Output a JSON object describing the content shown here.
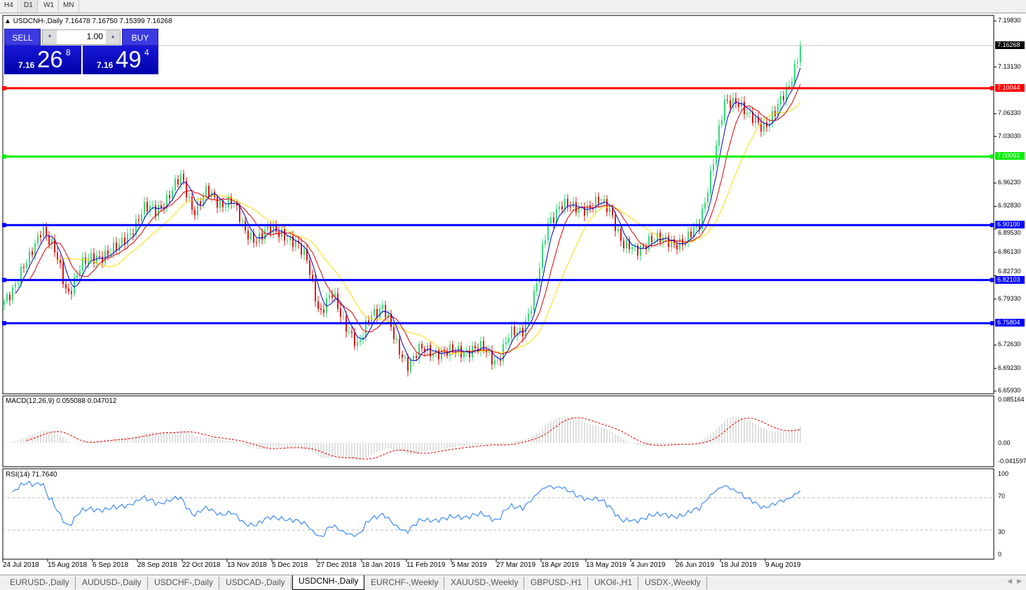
{
  "timeframes": [
    "H4",
    "D1",
    "W1",
    "MN"
  ],
  "active_timeframe": "D1",
  "chart": {
    "header": "USDCNH-,Daily  7.16478 7.16750 7.15399 7.16268",
    "symbol": "USDCNH-,Daily"
  },
  "trade_panel": {
    "sell_label": "SELL",
    "buy_label": "BUY",
    "lot": "1.00",
    "sell_price": {
      "prefix": "7.16",
      "big": "26",
      "sup": "8"
    },
    "buy_price": {
      "prefix": "7.16",
      "big": "49",
      "sup": "4"
    }
  },
  "price_axis": [
    "7.19830",
    "7.13130",
    "7.06330",
    "7.03030",
    "6.96230",
    "6.92830",
    "6.89530",
    "6.86130",
    "6.82730",
    "6.79330",
    "6.72630",
    "6.69230",
    "6.65930"
  ],
  "price_tags": [
    {
      "value": "7.16268",
      "price": 7.16268,
      "color": "#000000"
    },
    {
      "value": "7.10044",
      "price": 7.10044,
      "color": "#ff0000"
    },
    {
      "value": "7.00092",
      "price": 7.00092,
      "color": "#00ee00"
    },
    {
      "value": "6.90100",
      "price": 6.901,
      "color": "#0000ff"
    },
    {
      "value": "6.82103",
      "price": 6.82103,
      "color": "#0000ff"
    },
    {
      "value": "6.75804",
      "price": 6.75804,
      "color": "#0000ff"
    }
  ],
  "date_axis": [
    "24 Jul 2018",
    "15 Aug 2018",
    "6 Sep 2018",
    "28 Sep 2018",
    "22 Oct 2018",
    "13 Nov 2018",
    "5 Dec 2018",
    "27 Dec 2018",
    "18 Jan 2019",
    "11 Feb 2019",
    "5 Mar 2019",
    "27 Mar 2019",
    "18 Apr 2019",
    "13 May 2019",
    "4 Jun 2019",
    "26 Jun 2019",
    "18 Jul 2019",
    "9 Aug 2019"
  ],
  "macd": {
    "label": "MACD(12,26,9) 0.055088 0.047012",
    "axis": [
      "0.085164",
      "0.00",
      "-0.041597"
    ]
  },
  "rsi": {
    "label": "RSI(14) 71.7640",
    "axis": [
      "100",
      "70",
      "30",
      "0"
    ]
  },
  "tabs": [
    "EURUSD-,Daily",
    "AUDUSD-,Daily",
    "USDCHF-,Daily",
    "USDCAD-,Daily",
    "USDCNH-,Daily",
    "EURCHF-,Weekly",
    "XAUUSD-,Weekly",
    "GBPUSD-,H1",
    "UKOil-,H1",
    "USDX-,Weekly"
  ],
  "active_tab": "USDCNH-,Daily",
  "chart_data": {
    "type": "candlestick",
    "symbol": "USDCNH-",
    "timeframe": "Daily",
    "ylim": [
      6.6593,
      7.1983
    ],
    "approx_closes": [
      6.79,
      6.821,
      6.851,
      6.902,
      6.861,
      6.8,
      6.841,
      6.851,
      6.861,
      6.866,
      6.892,
      6.923,
      6.923,
      6.943,
      6.969,
      6.923,
      6.948,
      6.933,
      6.938,
      6.892,
      6.882,
      6.892,
      6.892,
      6.872,
      6.851,
      6.77,
      6.8,
      6.759,
      6.719,
      6.775,
      6.78,
      6.729,
      6.698,
      6.719,
      6.719,
      6.713,
      6.719,
      6.719,
      6.719,
      6.703,
      6.739,
      6.749,
      6.8,
      6.902,
      6.933,
      6.923,
      6.928,
      6.933,
      6.923,
      6.872,
      6.861,
      6.882,
      6.877,
      6.877,
      6.877,
      6.902,
      6.984,
      7.076,
      7.086,
      7.055,
      7.045,
      7.066,
      7.096,
      7.162
    ],
    "last": {
      "open": 7.16478,
      "high": 7.1675,
      "low": 7.15399,
      "close": 7.16268
    },
    "colors": {
      "bull": "#33dd77",
      "bear": "#ee1111",
      "ma_fast": "#0000cc",
      "ma_mid": "#dd0000",
      "ma_slow": "#ffdd00"
    }
  }
}
